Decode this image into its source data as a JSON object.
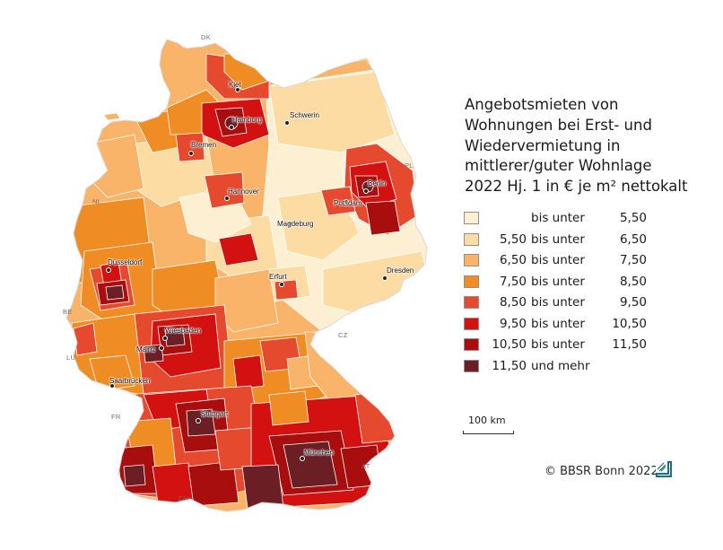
{
  "title_lines": [
    "Angebotsmieten von",
    "Wohnungen bei Erst- und",
    "Wiedervermietung in",
    "mittlerer/guter Wohnlage",
    "2022 Hj. 1 in € je m² nettokalt"
  ],
  "legend": [
    {
      "from": "",
      "mid": "bis unter",
      "to": "5,50",
      "color": "#fdf0d2"
    },
    {
      "from": "5,50",
      "mid": "bis unter",
      "to": "6,50",
      "color": "#fcdca3"
    },
    {
      "from": "6,50",
      "mid": "bis unter",
      "to": "7,50",
      "color": "#f9b46a"
    },
    {
      "from": "7,50",
      "mid": "bis unter",
      "to": "8,50",
      "color": "#f08c24"
    },
    {
      "from": "8,50",
      "mid": "bis unter",
      "to": "9,50",
      "color": "#e64a2e"
    },
    {
      "from": "9,50",
      "mid": "bis unter",
      "to": "10,50",
      "color": "#d41111"
    },
    {
      "from": "10,50",
      "mid": "bis unter",
      "to": "11,50",
      "color": "#a80e0e"
    },
    {
      "from": "11,50",
      "mid": "und mehr",
      "to": "",
      "color": "#6b1e24"
    }
  ],
  "cities": [
    "Kiel",
    "Hamburg",
    "Schwerin",
    "Bremen",
    "Berlin",
    "Potsdam",
    "Hannover",
    "Magdeburg",
    "Düsseldorf",
    "Erfurt",
    "Dresden",
    "Wiesbaden",
    "Mainz",
    "Saarbrücken",
    "Stuttgart",
    "München"
  ],
  "countries": [
    "DK",
    "PL",
    "NL",
    "BE",
    "LU",
    "FR",
    "CZ",
    "AT",
    "CH"
  ],
  "scale_label": "100 km",
  "credit": "© BBSR Bonn 2022"
}
